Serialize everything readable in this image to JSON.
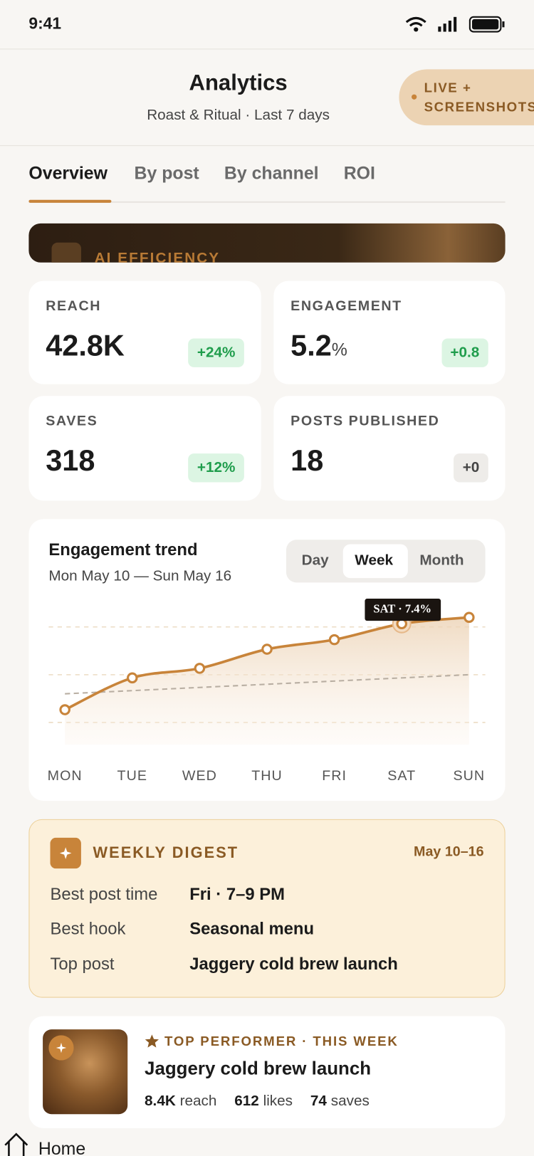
{
  "status_bar": {
    "time": "9:41"
  },
  "header": {
    "title": "Analytics",
    "subtitle": "Roast & Ritual · Last 7 days",
    "badge": "LIVE + SCREENSHOTS"
  },
  "tabs": [
    "Overview",
    "By post",
    "By channel",
    "ROI"
  ],
  "banner": {
    "label": "AI EFFICIENCY"
  },
  "metrics": [
    {
      "label": "REACH",
      "value": "42.8K",
      "change": "+24%"
    },
    {
      "label": "ENGAGEMENT",
      "value": "5.2",
      "unit": "%",
      "change": "+0.8"
    },
    {
      "label": "SAVES",
      "value": "318",
      "change": "+12%"
    },
    {
      "label": "POSTS PUBLISHED",
      "value": "18",
      "change": "+0"
    }
  ],
  "trend": {
    "title": "Engagement trend",
    "range": "Mon May 10 — Sun May 16",
    "periods": [
      "Day",
      "Week",
      "Month"
    ],
    "tooltip": "SAT · 7.4%",
    "chart_data": {
      "type": "line",
      "categories": [
        "MON",
        "TUE",
        "WED",
        "THU",
        "FRI",
        "SAT",
        "SUN"
      ],
      "values": [
        4.7,
        5.7,
        6.0,
        6.6,
        6.9,
        7.4,
        7.6
      ],
      "trend_values": [
        5.2,
        5.8
      ],
      "ylim": [
        3.6,
        8.0
      ],
      "yticks": [
        4.3,
        5.8,
        7.3
      ],
      "color": "#c8843a"
    }
  },
  "digest": {
    "title": "WEEKLY DIGEST",
    "dates": "May 10–16",
    "rows": [
      {
        "label": "Best post time",
        "value": "Fri · 7–9 PM"
      },
      {
        "label": "Best hook",
        "value": "Seasonal menu"
      },
      {
        "label": "Top post",
        "value": "Jaggery cold brew launch"
      }
    ]
  },
  "top_post": {
    "label": "TOP PERFORMER · THIS WEEK",
    "title": "Jaggery cold brew launch",
    "stats": [
      {
        "value": "8.4K",
        "label": "reach"
      },
      {
        "value": "612",
        "label": "likes"
      },
      {
        "value": "74",
        "label": "saves"
      }
    ]
  },
  "nav": {
    "home": "Home"
  }
}
